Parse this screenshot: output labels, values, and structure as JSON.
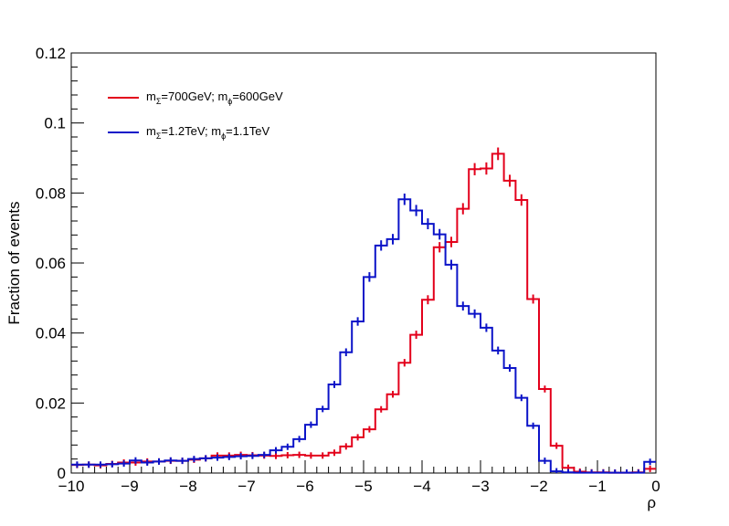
{
  "chart_data": {
    "type": "histogram",
    "title": "",
    "xlabel": "ρ",
    "ylabel": "Fraction of events",
    "xlim": [
      -10,
      0
    ],
    "ylim": [
      0,
      0.12
    ],
    "x_ticks": [
      "−10",
      "−9",
      "−8",
      "−7",
      "−6",
      "−5",
      "−4",
      "−3",
      "−2",
      "−1",
      "0"
    ],
    "y_ticks": [
      "0",
      "0.02",
      "0.04",
      "0.06",
      "0.08",
      "0.1",
      "0.12"
    ],
    "bin_width": 0.2,
    "bin_edges_start": -10,
    "grid": false,
    "legend": {
      "position": "top-left",
      "entries": [
        {
          "m": "m",
          "sub1": "Σ",
          "text1": "=700GeV; m",
          "sub2": "ϕ",
          "text2": "=600GeV",
          "color": "#e3001b"
        },
        {
          "m": "m",
          "sub1": "Σ",
          "text1": "=1.2TeV; m",
          "sub2": "ϕ",
          "text2": "=1.1TeV",
          "color": "#0b13c8"
        }
      ]
    },
    "series": [
      {
        "color": "#e3001b",
        "values": [
          0.0023,
          0.0024,
          0.0022,
          0.0026,
          0.003,
          0.003,
          0.0033,
          0.0033,
          0.0035,
          0.0035,
          0.0038,
          0.0042,
          0.005,
          0.005,
          0.0052,
          0.0051,
          0.005,
          0.0049,
          0.0051,
          0.0052,
          0.005,
          0.005,
          0.0058,
          0.0076,
          0.0102,
          0.0125,
          0.0182,
          0.0225,
          0.0315,
          0.0395,
          0.0495,
          0.0645,
          0.066,
          0.0755,
          0.0868,
          0.087,
          0.0912,
          0.0835,
          0.078,
          0.0497,
          0.024,
          0.0078,
          0.0015,
          0.0004,
          0.0002,
          0.0002,
          0.0001,
          0.0001,
          0.0002,
          0.0012
        ]
      },
      {
        "color": "#0b13c8",
        "values": [
          0.0024,
          0.0024,
          0.0024,
          0.0025,
          0.0027,
          0.0036,
          0.003,
          0.0033,
          0.0036,
          0.0035,
          0.004,
          0.0042,
          0.0044,
          0.0046,
          0.0048,
          0.0049,
          0.0052,
          0.0065,
          0.0075,
          0.0097,
          0.0138,
          0.0183,
          0.0253,
          0.0345,
          0.0433,
          0.056,
          0.065,
          0.0668,
          0.0782,
          0.075,
          0.0712,
          0.0682,
          0.0595,
          0.0477,
          0.0455,
          0.0415,
          0.035,
          0.03,
          0.0215,
          0.0135,
          0.0035,
          0.0005,
          0.0002,
          0.0001,
          0.0001,
          0.0001,
          0.0001,
          0.0001,
          0.0001,
          0.0032
        ]
      }
    ]
  }
}
